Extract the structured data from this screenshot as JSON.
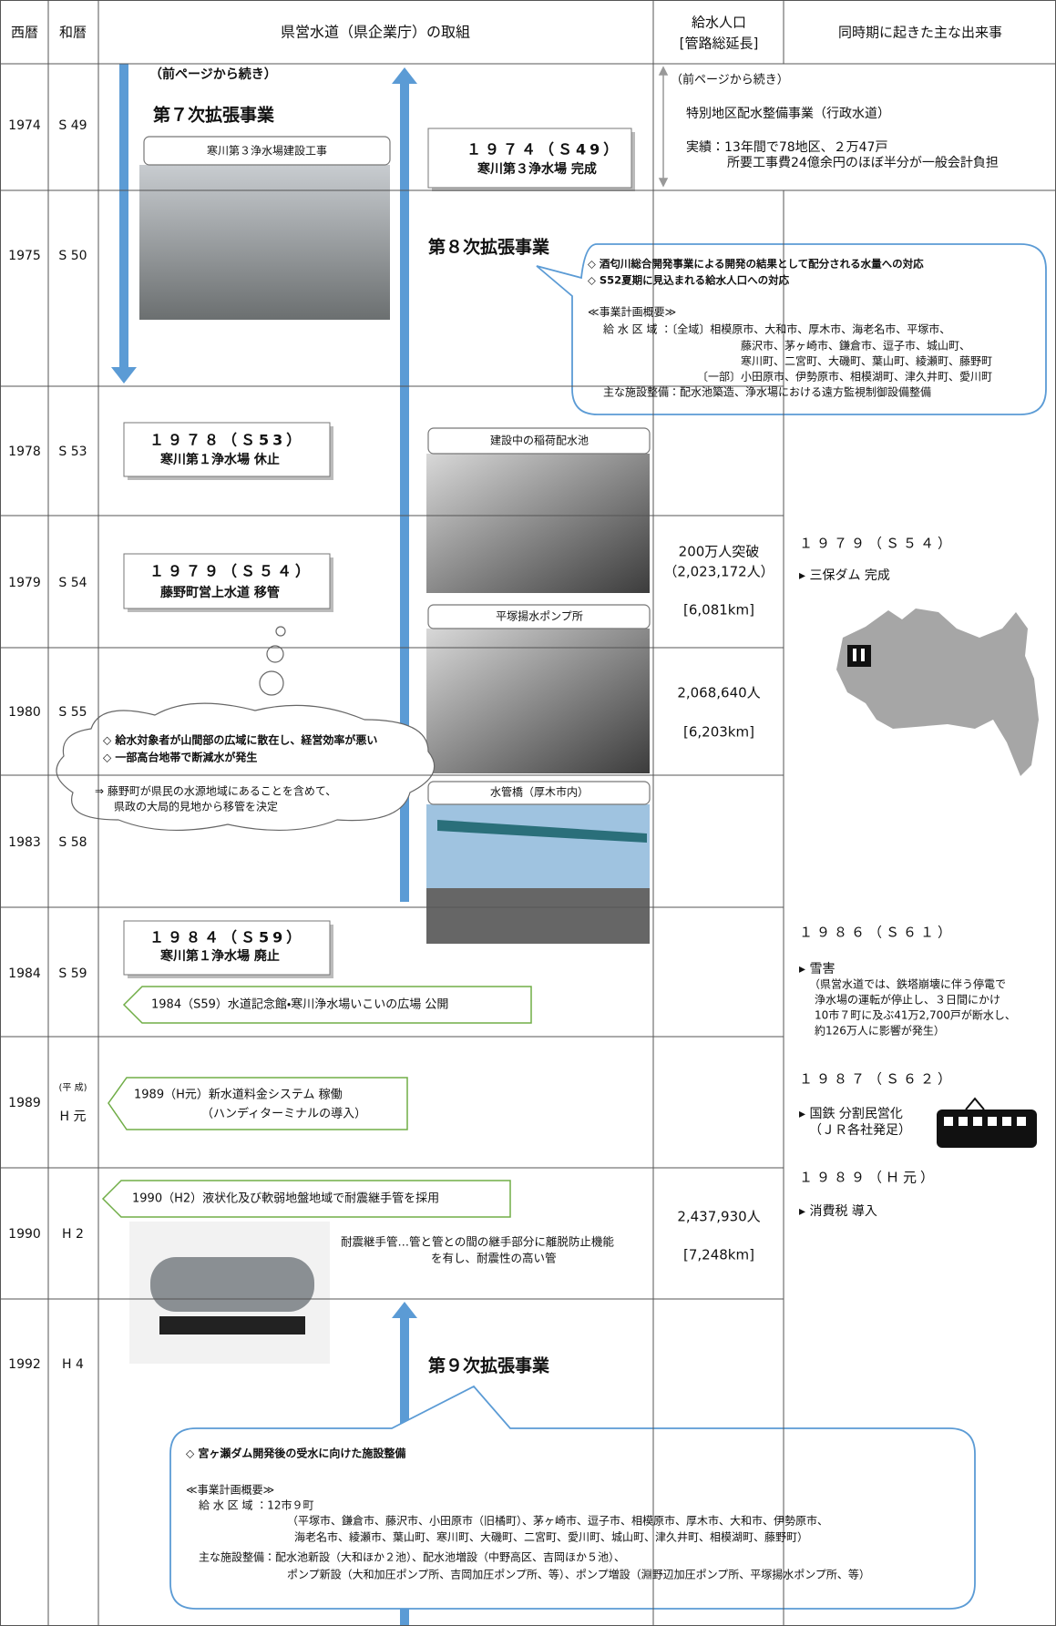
{
  "header": {
    "seireki": "西暦",
    "wareki": "和暦",
    "main": "県営水道（県企業庁）の取組",
    "population": [
      "給水人口",
      "[管路総延長]"
    ],
    "events": "同時期に起きた主な出来事"
  },
  "rows": [
    {
      "seireki": "1974",
      "wareki": "S 49"
    },
    {
      "seireki": "1975",
      "wareki": "S 50"
    },
    {
      "seireki": "1978",
      "wareki": "S 53"
    },
    {
      "seireki": "1979",
      "wareki": "S 54"
    },
    {
      "seireki": "1980",
      "wareki": "S 55"
    },
    {
      "seireki": "1983",
      "wareki": "S 58"
    },
    {
      "seireki": "1984",
      "wareki": "S 59"
    },
    {
      "seireki": "1989",
      "wareki_note": "(平 成)",
      "wareki": "H 元"
    },
    {
      "seireki": "1990",
      "wareki": "H 2"
    },
    {
      "seireki": "1992",
      "wareki": "H 4"
    }
  ],
  "main": {
    "continued": "（前ページから続き）",
    "project7": {
      "title": "第７次拡張事業",
      "photo_caption": "寒川第３浄水場建設工事"
    },
    "milestones": [
      {
        "year": "１９７４（Ｓ49）",
        "text": "寒川第３浄水場 完成"
      },
      {
        "year": "１９７８（Ｓ53）",
        "text": "寒川第１浄水場 休止"
      },
      {
        "year": "１９７９（Ｓ５４）",
        "text": "藤野町営上水道 移管"
      },
      {
        "year": "１９８４（Ｓ59）",
        "text": "寒川第１浄水場 廃止"
      }
    ],
    "project8": {
      "title": "第８次拡張事業",
      "goals": [
        "◇ 酒匂川総合開発事業による開発の結果として配分される水量への対応",
        "◇ S52夏期に見込まれる給水人口への対応"
      ],
      "plan_heading": "≪事業計画概要≫",
      "plan_lines": [
        "給 水 区 域 ：〔全域〕相模原市、大和市、厚木市、海老名市、平塚市、",
        "藤沢市、茅ヶ崎市、鎌倉市、逗子市、城山町、",
        "寒川町、二宮町、大磯町、葉山町、綾瀬町、藤野町",
        "〔一部〕小田原市、伊勢原市、相模湖町、津久井町、愛川町",
        "主な施設整備：配水池築造、浄水場における遠方監視制御設備整備"
      ]
    },
    "photo_captions": [
      "建設中の稲荷配水池",
      "平塚揚水ポンプ所",
      "水管橋（厚木市内）"
    ],
    "fujino": {
      "issues": [
        "◇ 給水対象者が山間部の広域に散在し、経営効率が悪い",
        "◇ 一部高台地帯で断減水が発生"
      ],
      "conclusion": [
        "⇒ 藤野町が県民の水源地域にあることを含めて、",
        "県政の大局的見地から移管を決定"
      ]
    },
    "notes": [
      [
        "1984（S59）水道記念館・寒川浄水場いこいの広場 公開"
      ],
      [
        "1989（H元）新水道料金システム 稼働",
        "（ハンディターミナルの導入）"
      ],
      [
        "1990（H2）液状化及び軟弱地盤地域で耐震継手管を採用"
      ]
    ],
    "pipe_note": [
      "耐震継手管…管と管との間の継手部分に離脱防止機能",
      "を有し、耐震性の高い管"
    ],
    "project9": {
      "title": "第９次拡張事業",
      "goal": "◇ 宮ヶ瀬ダム開発後の受水に向けた施設整備",
      "plan_heading": "≪事業計画概要≫",
      "plan_lines": [
        "給 水 区 域 ：12市９町",
        "（平塚市、鎌倉市、藤沢市、小田原市（旧橘町）、茅ヶ崎市、逗子市、相模原市、厚木市、大和市、伊勢原市、",
        "海老名市、綾瀬市、葉山町、寒川町、大磯町、二宮町、愛川町、城山町、津久井町、相模湖町、藤野町）",
        "主な施設整備：配水池新設（大和ほか２池）、配水池増設（中野高区、吉岡ほか５池）、",
        "ポンプ新設（大和加圧ポンプ所、吉岡加圧ポンプ所、等）、ポンプ増設（淵野辺加圧ポンプ所、平塚揚水ポンプ所、等）"
      ]
    }
  },
  "population": {
    "special": {
      "continued": "（前ページから続き）",
      "project": "特別地区配水整備事業（行政水道）",
      "result": [
        "実績：13年間で78地区、２万47戸",
        "所要工事費24億余円のほぼ半分が一般会計負担"
      ]
    },
    "entries": [
      [
        "200万人突破",
        "（2,023,172人）",
        "[6,081km]"
      ],
      [
        "2,068,640人",
        "[6,203km]"
      ],
      [
        "2,437,930人",
        "[7,248km]"
      ]
    ]
  },
  "events": [
    {
      "year": "１９７９（Ｓ５４）",
      "items": [
        "▸ 三保ダム 完成"
      ]
    },
    {
      "year": "１９８６（Ｓ６１）",
      "items": [
        "▸ 雪害",
        "（県営水道では、鉄塔崩壊に伴う停電で",
        "浄水場の運転が停止し、３日間にかけ",
        "10市７町に及ぶ41万2,700戸が断水し、",
        "約126万人に影響が発生）"
      ]
    },
    {
      "year": "１９８７（Ｓ６２）",
      "items": [
        "▸ 国鉄 分割民営化",
        "（ＪＲ各社発足）"
      ]
    },
    {
      "year": "１９８９（Ｈ元）",
      "items": [
        "▸ 消費税 導入"
      ]
    }
  ]
}
